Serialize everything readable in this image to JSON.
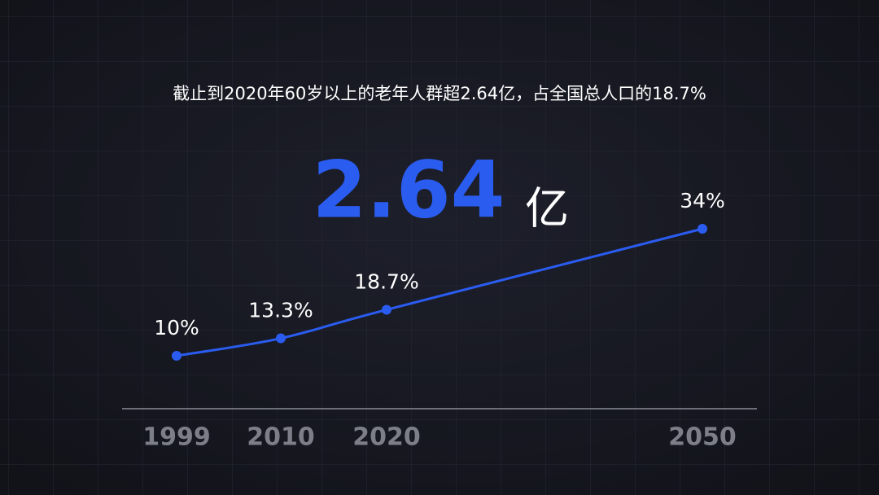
{
  "chart_data": {
    "type": "line",
    "title": "截止到2020年60岁以上的老年人群超2.64亿，占全国总人口的18.7%",
    "highlight": "2.64",
    "highlight_unit": "亿",
    "categories": [
      "1999",
      "2010",
      "2020",
      "2050"
    ],
    "values": [
      10,
      13.3,
      18.7,
      34
    ],
    "value_labels": [
      "10%",
      "13.3%",
      "18.7%",
      "34%"
    ],
    "color": "#2a5cf0"
  }
}
